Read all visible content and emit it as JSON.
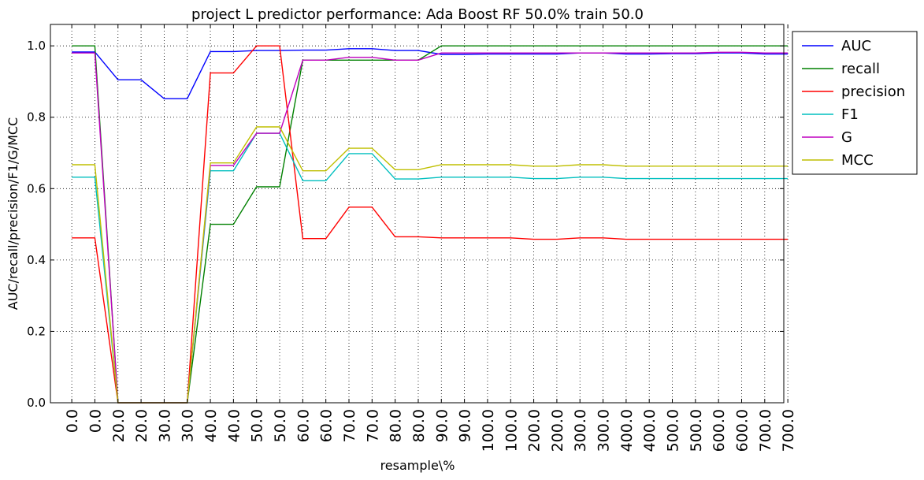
{
  "chart_data": {
    "type": "line",
    "title": "project L predictor performance: Ada Boost RF 50.0% train 50.0",
    "xlabel": "resample\\%",
    "ylabel": "AUC/recall/precision/F1/G/MCC",
    "ylim": [
      0.0,
      1.06
    ],
    "yticks": [
      "0.0",
      "0.2",
      "0.4",
      "0.6",
      "0.8",
      "1.0"
    ],
    "grid": true,
    "legend_position": "outside-right",
    "categories": [
      "0.0",
      "0.0",
      "20.0",
      "20.0",
      "30.0",
      "30.0",
      "40.0",
      "40.0",
      "50.0",
      "50.0",
      "60.0",
      "60.0",
      "70.0",
      "70.0",
      "80.0",
      "80.0",
      "90.0",
      "90.0",
      "100.0",
      "100.0",
      "200.0",
      "200.0",
      "300.0",
      "300.0",
      "400.0",
      "400.0",
      "500.0",
      "500.0",
      "600.0",
      "600.0",
      "700.0",
      "700.0"
    ],
    "series": [
      {
        "name": "AUC",
        "color": "#0000ff",
        "values": [
          0.983,
          0.983,
          0.905,
          0.905,
          0.852,
          0.852,
          0.984,
          0.984,
          0.987,
          0.987,
          0.988,
          0.988,
          0.992,
          0.992,
          0.987,
          0.987,
          0.976,
          0.976,
          0.977,
          0.977,
          0.977,
          0.977,
          0.98,
          0.98,
          0.977,
          0.977,
          0.978,
          0.978,
          0.98,
          0.98,
          0.977,
          0.977
        ]
      },
      {
        "name": "recall",
        "color": "#008000",
        "values": [
          1.0,
          1.0,
          0.0,
          0.0,
          0.0,
          0.0,
          0.5,
          0.5,
          0.605,
          0.605,
          0.96,
          0.96,
          0.96,
          0.96,
          0.96,
          0.96,
          1.0,
          1.0,
          1.0,
          1.0,
          1.0,
          1.0,
          1.0,
          1.0,
          1.0,
          1.0,
          1.0,
          1.0,
          1.0,
          1.0,
          1.0,
          1.0
        ]
      },
      {
        "name": "precision",
        "color": "#ff0000",
        "values": [
          0.462,
          0.462,
          0.0,
          0.0,
          0.0,
          0.0,
          0.924,
          0.924,
          1.0,
          1.0,
          0.46,
          0.46,
          0.548,
          0.548,
          0.465,
          0.465,
          0.462,
          0.462,
          0.462,
          0.462,
          0.458,
          0.458,
          0.462,
          0.462,
          0.458,
          0.458,
          0.458,
          0.458,
          0.458,
          0.458,
          0.458,
          0.458
        ]
      },
      {
        "name": "F1",
        "color": "#00bfbf",
        "values": [
          0.632,
          0.632,
          0.0,
          0.0,
          0.0,
          0.0,
          0.65,
          0.65,
          0.755,
          0.755,
          0.622,
          0.622,
          0.698,
          0.698,
          0.627,
          0.627,
          0.632,
          0.632,
          0.632,
          0.632,
          0.628,
          0.628,
          0.632,
          0.632,
          0.628,
          0.628,
          0.628,
          0.628,
          0.628,
          0.628,
          0.628,
          0.628
        ]
      },
      {
        "name": "G",
        "color": "#bf00bf",
        "values": [
          0.98,
          0.98,
          0.0,
          0.0,
          0.0,
          0.0,
          0.665,
          0.665,
          0.755,
          0.755,
          0.96,
          0.96,
          0.968,
          0.968,
          0.96,
          0.96,
          0.98,
          0.98,
          0.98,
          0.98,
          0.98,
          0.98,
          0.98,
          0.98,
          0.98,
          0.98,
          0.98,
          0.98,
          0.982,
          0.982,
          0.98,
          0.98
        ]
      },
      {
        "name": "MCC",
        "color": "#bfbf00",
        "values": [
          0.667,
          0.667,
          0.0,
          0.0,
          0.0,
          0.0,
          0.672,
          0.672,
          0.773,
          0.773,
          0.65,
          0.65,
          0.713,
          0.713,
          0.653,
          0.653,
          0.667,
          0.667,
          0.667,
          0.667,
          0.663,
          0.663,
          0.667,
          0.667,
          0.663,
          0.663,
          0.663,
          0.663,
          0.663,
          0.663,
          0.663,
          0.663
        ]
      }
    ]
  }
}
